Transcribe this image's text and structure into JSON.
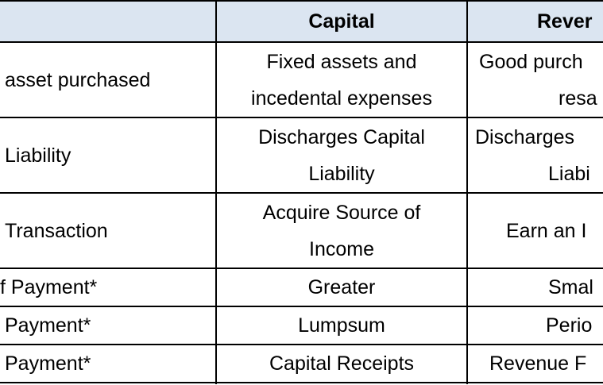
{
  "header": [
    "Capital",
    "Rever"
  ],
  "rows": [
    [
      "asset purchased",
      [
        "Fixed assets and",
        "incedental expenses"
      ],
      [
        "Good purch",
        "resa"
      ]
    ],
    [
      "Liability",
      [
        "Discharges Capital",
        "Liability"
      ],
      [
        "Discharges",
        "Liabi"
      ]
    ],
    [
      "Transaction",
      [
        "Acquire Source of",
        "Income"
      ],
      [
        "Earn an I"
      ]
    ],
    [
      "f Payment*",
      [
        "Greater"
      ],
      [
        "Smal"
      ]
    ],
    [
      "Payment*",
      [
        "Lumpsum"
      ],
      [
        "Perio"
      ]
    ],
    [
      "Payment*",
      [
        "Capital Receipts"
      ],
      [
        "Revenue F"
      ]
    ]
  ]
}
